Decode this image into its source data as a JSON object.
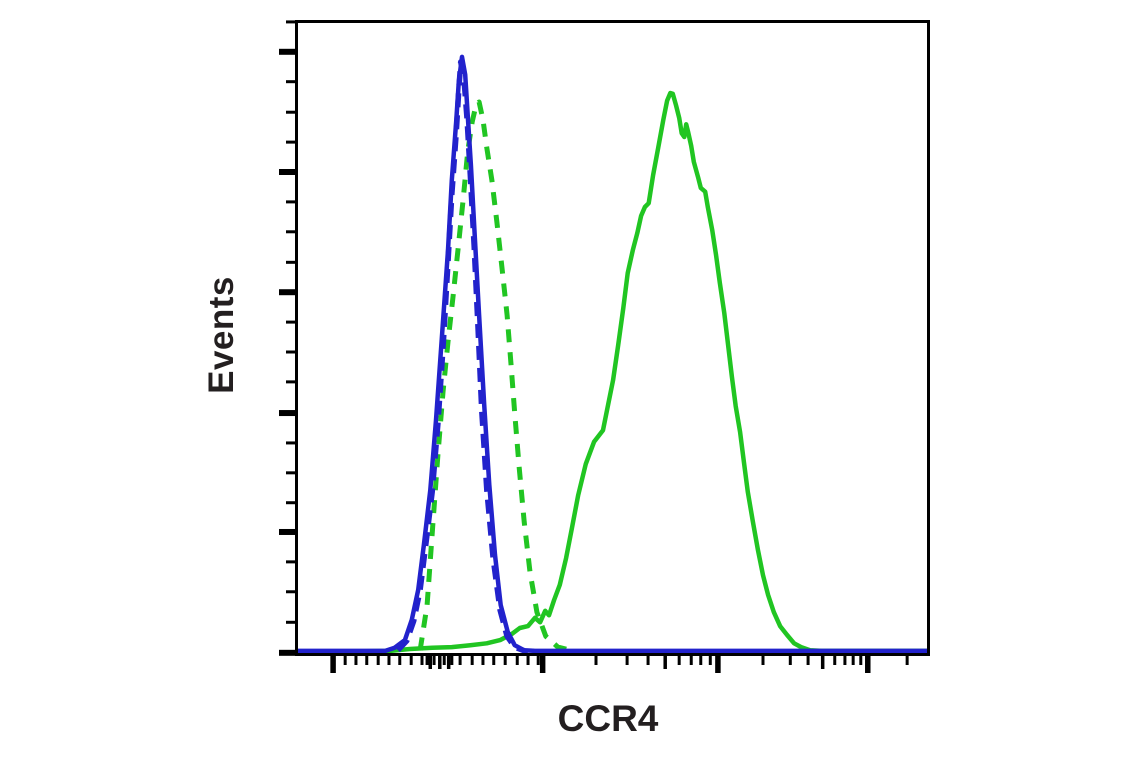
{
  "chart_data": {
    "type": "line",
    "subtype": "flow-cytometry-histogram-overlay",
    "title": "",
    "xlabel": "CCR4",
    "ylabel": "Events",
    "x_scale": "biexponential, unlabeled tick marks (log-like decades with dense zero cluster)",
    "y_scale": "linear, unlabeled tick marks",
    "grid": false,
    "legend": false,
    "background": "#ffffff",
    "frame_color": "#000000",
    "x_axis": {
      "ticks": [
        {
          "pos": 0.06,
          "kind": "major"
        },
        {
          "pos": 0.079,
          "kind": "minor"
        },
        {
          "pos": 0.096,
          "kind": "minor"
        },
        {
          "pos": 0.113,
          "kind": "minor"
        },
        {
          "pos": 0.131,
          "kind": "minor"
        },
        {
          "pos": 0.148,
          "kind": "minor"
        },
        {
          "pos": 0.165,
          "kind": "minor"
        },
        {
          "pos": 0.183,
          "kind": "minor"
        },
        {
          "pos": 0.2,
          "kind": "minor"
        },
        {
          "pos": 0.208,
          "kind": "minor"
        },
        {
          "pos": 0.213,
          "kind": "medium"
        },
        {
          "pos": 0.219,
          "kind": "minor"
        },
        {
          "pos": 0.228,
          "kind": "medium"
        },
        {
          "pos": 0.235,
          "kind": "minor"
        },
        {
          "pos": 0.242,
          "kind": "medium"
        },
        {
          "pos": 0.247,
          "kind": "minor"
        },
        {
          "pos": 0.26,
          "kind": "minor"
        },
        {
          "pos": 0.279,
          "kind": "minor"
        },
        {
          "pos": 0.296,
          "kind": "minor"
        },
        {
          "pos": 0.313,
          "kind": "minor"
        },
        {
          "pos": 0.331,
          "kind": "minor"
        },
        {
          "pos": 0.35,
          "kind": "minor"
        },
        {
          "pos": 0.367,
          "kind": "minor"
        },
        {
          "pos": 0.383,
          "kind": "minor"
        },
        {
          "pos": 0.39,
          "kind": "major"
        },
        {
          "pos": 0.474,
          "kind": "minor"
        },
        {
          "pos": 0.523,
          "kind": "minor"
        },
        {
          "pos": 0.556,
          "kind": "minor"
        },
        {
          "pos": 0.583,
          "kind": "medium"
        },
        {
          "pos": 0.605,
          "kind": "minor"
        },
        {
          "pos": 0.624,
          "kind": "minor"
        },
        {
          "pos": 0.639,
          "kind": "minor"
        },
        {
          "pos": 0.654,
          "kind": "minor"
        },
        {
          "pos": 0.666,
          "kind": "major"
        },
        {
          "pos": 0.737,
          "kind": "minor"
        },
        {
          "pos": 0.78,
          "kind": "minor"
        },
        {
          "pos": 0.808,
          "kind": "minor"
        },
        {
          "pos": 0.831,
          "kind": "medium"
        },
        {
          "pos": 0.85,
          "kind": "minor"
        },
        {
          "pos": 0.866,
          "kind": "minor"
        },
        {
          "pos": 0.879,
          "kind": "minor"
        },
        {
          "pos": 0.891,
          "kind": "minor"
        },
        {
          "pos": 0.902,
          "kind": "major"
        },
        {
          "pos": 0.964,
          "kind": "minor"
        }
      ]
    },
    "y_axis": {
      "ticks": [
        {
          "pos": 0.003,
          "kind": "minor"
        },
        {
          "pos": 0.05,
          "kind": "major"
        },
        {
          "pos": 0.097,
          "kind": "minor"
        },
        {
          "pos": 0.145,
          "kind": "minor"
        },
        {
          "pos": 0.192,
          "kind": "minor"
        },
        {
          "pos": 0.239,
          "kind": "major"
        },
        {
          "pos": 0.286,
          "kind": "minor"
        },
        {
          "pos": 0.333,
          "kind": "minor"
        },
        {
          "pos": 0.381,
          "kind": "minor"
        },
        {
          "pos": 0.428,
          "kind": "major"
        },
        {
          "pos": 0.475,
          "kind": "minor"
        },
        {
          "pos": 0.522,
          "kind": "minor"
        },
        {
          "pos": 0.569,
          "kind": "minor"
        },
        {
          "pos": 0.618,
          "kind": "major"
        },
        {
          "pos": 0.665,
          "kind": "minor"
        },
        {
          "pos": 0.712,
          "kind": "minor"
        },
        {
          "pos": 0.759,
          "kind": "minor"
        },
        {
          "pos": 0.805,
          "kind": "major"
        },
        {
          "pos": 0.852,
          "kind": "minor"
        },
        {
          "pos": 0.899,
          "kind": "minor"
        },
        {
          "pos": 0.947,
          "kind": "minor"
        },
        {
          "pos": 0.995,
          "kind": "major"
        }
      ]
    },
    "series": [
      {
        "name": "dashed-green-peak",
        "style": "dashed",
        "color": "#21c522",
        "width": 5,
        "dash": "13 10",
        "peak_x": 0.29,
        "peak_height": 0.87,
        "points": [
          [
            0.197,
            0.009
          ],
          [
            0.208,
            0.08
          ],
          [
            0.217,
            0.206
          ],
          [
            0.225,
            0.316
          ],
          [
            0.233,
            0.415
          ],
          [
            0.241,
            0.494
          ],
          [
            0.249,
            0.566
          ],
          [
            0.257,
            0.642
          ],
          [
            0.265,
            0.72
          ],
          [
            0.272,
            0.793
          ],
          [
            0.279,
            0.84
          ],
          [
            0.285,
            0.866
          ],
          [
            0.29,
            0.871
          ],
          [
            0.296,
            0.843
          ],
          [
            0.302,
            0.799
          ],
          [
            0.31,
            0.748
          ],
          [
            0.318,
            0.682
          ],
          [
            0.326,
            0.61
          ],
          [
            0.334,
            0.536
          ],
          [
            0.34,
            0.461
          ],
          [
            0.346,
            0.382
          ],
          [
            0.353,
            0.296
          ],
          [
            0.361,
            0.211
          ],
          [
            0.37,
            0.132
          ],
          [
            0.381,
            0.069
          ],
          [
            0.395,
            0.031
          ],
          [
            0.414,
            0.014
          ],
          [
            0.438,
            0.008
          ]
        ]
      },
      {
        "name": "solid-green-peak",
        "style": "solid",
        "color": "#21c522",
        "width": 4.5,
        "dash": "",
        "peak_x": 0.591,
        "peak_height": 0.885,
        "points": [
          [
            0.0,
            0.006
          ],
          [
            0.15,
            0.008
          ],
          [
            0.181,
            0.011
          ],
          [
            0.216,
            0.013
          ],
          [
            0.247,
            0.014
          ],
          [
            0.276,
            0.017
          ],
          [
            0.302,
            0.02
          ],
          [
            0.323,
            0.025
          ],
          [
            0.342,
            0.035
          ],
          [
            0.354,
            0.044
          ],
          [
            0.367,
            0.047
          ],
          [
            0.378,
            0.06
          ],
          [
            0.386,
            0.053
          ],
          [
            0.394,
            0.071
          ],
          [
            0.4,
            0.064
          ],
          [
            0.408,
            0.088
          ],
          [
            0.417,
            0.112
          ],
          [
            0.427,
            0.154
          ],
          [
            0.436,
            0.201
          ],
          [
            0.446,
            0.253
          ],
          [
            0.458,
            0.302
          ],
          [
            0.471,
            0.337
          ],
          [
            0.485,
            0.355
          ],
          [
            0.493,
            0.395
          ],
          [
            0.501,
            0.434
          ],
          [
            0.509,
            0.489
          ],
          [
            0.517,
            0.547
          ],
          [
            0.524,
            0.602
          ],
          [
            0.532,
            0.638
          ],
          [
            0.539,
            0.665
          ],
          [
            0.545,
            0.692
          ],
          [
            0.551,
            0.706
          ],
          [
            0.557,
            0.712
          ],
          [
            0.564,
            0.756
          ],
          [
            0.572,
            0.799
          ],
          [
            0.58,
            0.843
          ],
          [
            0.586,
            0.873
          ],
          [
            0.591,
            0.885
          ],
          [
            0.595,
            0.884
          ],
          [
            0.6,
            0.866
          ],
          [
            0.605,
            0.846
          ],
          [
            0.609,
            0.822
          ],
          [
            0.613,
            0.816
          ],
          [
            0.616,
            0.836
          ],
          [
            0.619,
            0.824
          ],
          [
            0.624,
            0.802
          ],
          [
            0.628,
            0.777
          ],
          [
            0.635,
            0.752
          ],
          [
            0.639,
            0.736
          ],
          [
            0.646,
            0.73
          ],
          [
            0.65,
            0.706
          ],
          [
            0.657,
            0.67
          ],
          [
            0.663,
            0.631
          ],
          [
            0.669,
            0.587
          ],
          [
            0.676,
            0.539
          ],
          [
            0.682,
            0.489
          ],
          [
            0.688,
            0.439
          ],
          [
            0.694,
            0.393
          ],
          [
            0.701,
            0.352
          ],
          [
            0.707,
            0.305
          ],
          [
            0.713,
            0.258
          ],
          [
            0.721,
            0.212
          ],
          [
            0.729,
            0.167
          ],
          [
            0.737,
            0.127
          ],
          [
            0.745,
            0.096
          ],
          [
            0.754,
            0.069
          ],
          [
            0.764,
            0.047
          ],
          [
            0.775,
            0.033
          ],
          [
            0.786,
            0.02
          ],
          [
            0.797,
            0.014
          ],
          [
            0.811,
            0.009
          ],
          [
            0.83,
            0.008
          ],
          [
            1.0,
            0.008
          ]
        ]
      },
      {
        "name": "dashed-blue-peak",
        "style": "dashed",
        "color": "#2222cc",
        "width": 5.5,
        "dash": "14 8",
        "peak_x": 0.261,
        "peak_height": 0.934,
        "points": [
          [
            0.162,
            0.009
          ],
          [
            0.176,
            0.024
          ],
          [
            0.187,
            0.055
          ],
          [
            0.197,
            0.104
          ],
          [
            0.206,
            0.175
          ],
          [
            0.216,
            0.258
          ],
          [
            0.225,
            0.365
          ],
          [
            0.233,
            0.484
          ],
          [
            0.241,
            0.619
          ],
          [
            0.247,
            0.725
          ],
          [
            0.254,
            0.824
          ],
          [
            0.258,
            0.89
          ],
          [
            0.261,
            0.934
          ],
          [
            0.266,
            0.909
          ],
          [
            0.271,
            0.843
          ],
          [
            0.276,
            0.756
          ],
          [
            0.282,
            0.646
          ],
          [
            0.288,
            0.52
          ],
          [
            0.294,
            0.387
          ],
          [
            0.302,
            0.261
          ],
          [
            0.312,
            0.154
          ],
          [
            0.323,
            0.072
          ],
          [
            0.334,
            0.031
          ],
          [
            0.346,
            0.014
          ],
          [
            0.367,
            0.006
          ]
        ]
      },
      {
        "name": "solid-blue-peak",
        "style": "solid",
        "color": "#2222cc",
        "width": 4.5,
        "dash": "",
        "peak_x": 0.263,
        "peak_height": 0.942,
        "points": [
          [
            0.0,
            0.008
          ],
          [
            0.142,
            0.008
          ],
          [
            0.157,
            0.013
          ],
          [
            0.173,
            0.025
          ],
          [
            0.184,
            0.057
          ],
          [
            0.194,
            0.104
          ],
          [
            0.203,
            0.175
          ],
          [
            0.213,
            0.261
          ],
          [
            0.222,
            0.371
          ],
          [
            0.231,
            0.497
          ],
          [
            0.241,
            0.638
          ],
          [
            0.247,
            0.748
          ],
          [
            0.254,
            0.843
          ],
          [
            0.258,
            0.903
          ],
          [
            0.263,
            0.942
          ],
          [
            0.268,
            0.914
          ],
          [
            0.272,
            0.851
          ],
          [
            0.277,
            0.772
          ],
          [
            0.283,
            0.662
          ],
          [
            0.29,
            0.536
          ],
          [
            0.298,
            0.395
          ],
          [
            0.306,
            0.269
          ],
          [
            0.315,
            0.159
          ],
          [
            0.324,
            0.08
          ],
          [
            0.335,
            0.038
          ],
          [
            0.346,
            0.017
          ],
          [
            0.361,
            0.009
          ],
          [
            0.378,
            0.008
          ],
          [
            1.0,
            0.008
          ]
        ]
      }
    ]
  }
}
